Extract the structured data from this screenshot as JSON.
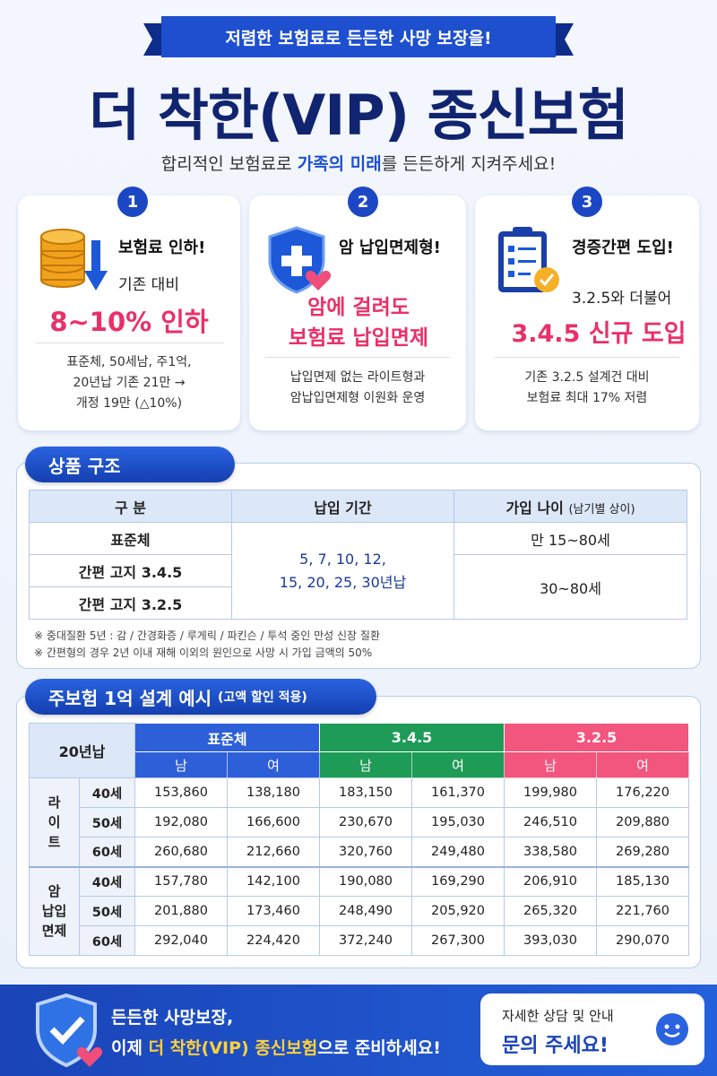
{
  "banner": "저렴한 보험료로 든든한 사망 보장을!",
  "title": "더 착한(VIP) 종신보험",
  "subtitle": {
    "before": "합리적인 보험료로 ",
    "highlight": "가족의 미래",
    "after": "를 든든하게 지켜주세요!"
  },
  "features": [
    {
      "number": "1",
      "heading": "보험료 인하!",
      "sub": "기존 대비",
      "highlight": "8~10% 인하",
      "notes": [
        "표준체, 50세남, 주1억,",
        "20년납 기존 21만 →",
        "개정 19만 (△10%)"
      ]
    },
    {
      "number": "2",
      "heading": "암 납입면제형!",
      "highlight_lines": [
        "암에 걸려도",
        "보험료 납입면제"
      ],
      "notes": [
        "납입면제 없는 라이트형과",
        "암납입면제형 이원화 운영"
      ]
    },
    {
      "number": "3",
      "heading": "경증간편 도입!",
      "sub": "3.2.5와 더불어",
      "highlight": "3.4.5 신규 도입",
      "notes": [
        "기존 3.2.5 설계건 대비",
        "보험료 최대 17% 저렴"
      ]
    }
  ],
  "structure": {
    "title": "상품 구조",
    "headers": {
      "type": "구 분",
      "period": "납입 기간",
      "age": "가입 나이",
      "age_note": "(남기별 상이)"
    },
    "types": [
      "표준체",
      "간편 고지 3.4.5",
      "간편 고지 3.2.5"
    ],
    "period_lines": [
      "5, 7, 10, 12,",
      "15, 20, 25, 30년납"
    ],
    "ages": [
      "만 15~80세",
      "30~80세"
    ],
    "notes": [
      "※ 중대질환 5년 : 감 / 간경화증 / 루게릭 / 파킨슨 / 투석 중인 만성 신장 질환",
      "※ 간편형의 경우 2년 이내 재해 이외의 원인으로 사망 시 가입 금액의 50%"
    ]
  },
  "example": {
    "title": "주보험 1억 설계 예시",
    "title_note": "(고액 할인 적용)",
    "corner": "20년납",
    "groups": [
      {
        "name": "표준체",
        "color": "#2d5fd8",
        "sub": [
          "남",
          "여"
        ]
      },
      {
        "name": "3.4.5",
        "color": "#1e9b56",
        "sub": [
          "남",
          "여"
        ]
      },
      {
        "name": "3.2.5",
        "color": "#f2557d",
        "sub": [
          "남",
          "여"
        ]
      }
    ],
    "types": [
      {
        "label_lines": [
          "라",
          "이",
          "트"
        ],
        "rows": [
          {
            "age": "40세",
            "values": [
              "153,860",
              "138,180",
              "183,150",
              "161,370",
              "199,980",
              "176,220"
            ]
          },
          {
            "age": "50세",
            "values": [
              "192,080",
              "166,600",
              "230,670",
              "195,030",
              "246,510",
              "209,880"
            ]
          },
          {
            "age": "60세",
            "values": [
              "260,680",
              "212,660",
              "320,760",
              "249,480",
              "338,580",
              "269,280"
            ]
          }
        ]
      },
      {
        "label_lines": [
          "암",
          "납입",
          "면제"
        ],
        "rows": [
          {
            "age": "40세",
            "values": [
              "157,780",
              "142,100",
              "190,080",
              "169,290",
              "206,910",
              "185,130"
            ]
          },
          {
            "age": "50세",
            "values": [
              "201,880",
              "173,460",
              "248,490",
              "205,920",
              "265,320",
              "221,760"
            ]
          },
          {
            "age": "60세",
            "values": [
              "292,040",
              "224,420",
              "372,240",
              "267,300",
              "393,030",
              "290,070"
            ]
          }
        ]
      }
    ]
  },
  "footer": {
    "line1": "든든한 사망보장,",
    "line2_before": "이제 ",
    "line2_highlight": "더 착한(VIP) 종신보험",
    "line2_after": "으로 준비하세요!",
    "contact_small": "자세한 상담 및 안내",
    "contact_big": "문의 주세요!"
  }
}
